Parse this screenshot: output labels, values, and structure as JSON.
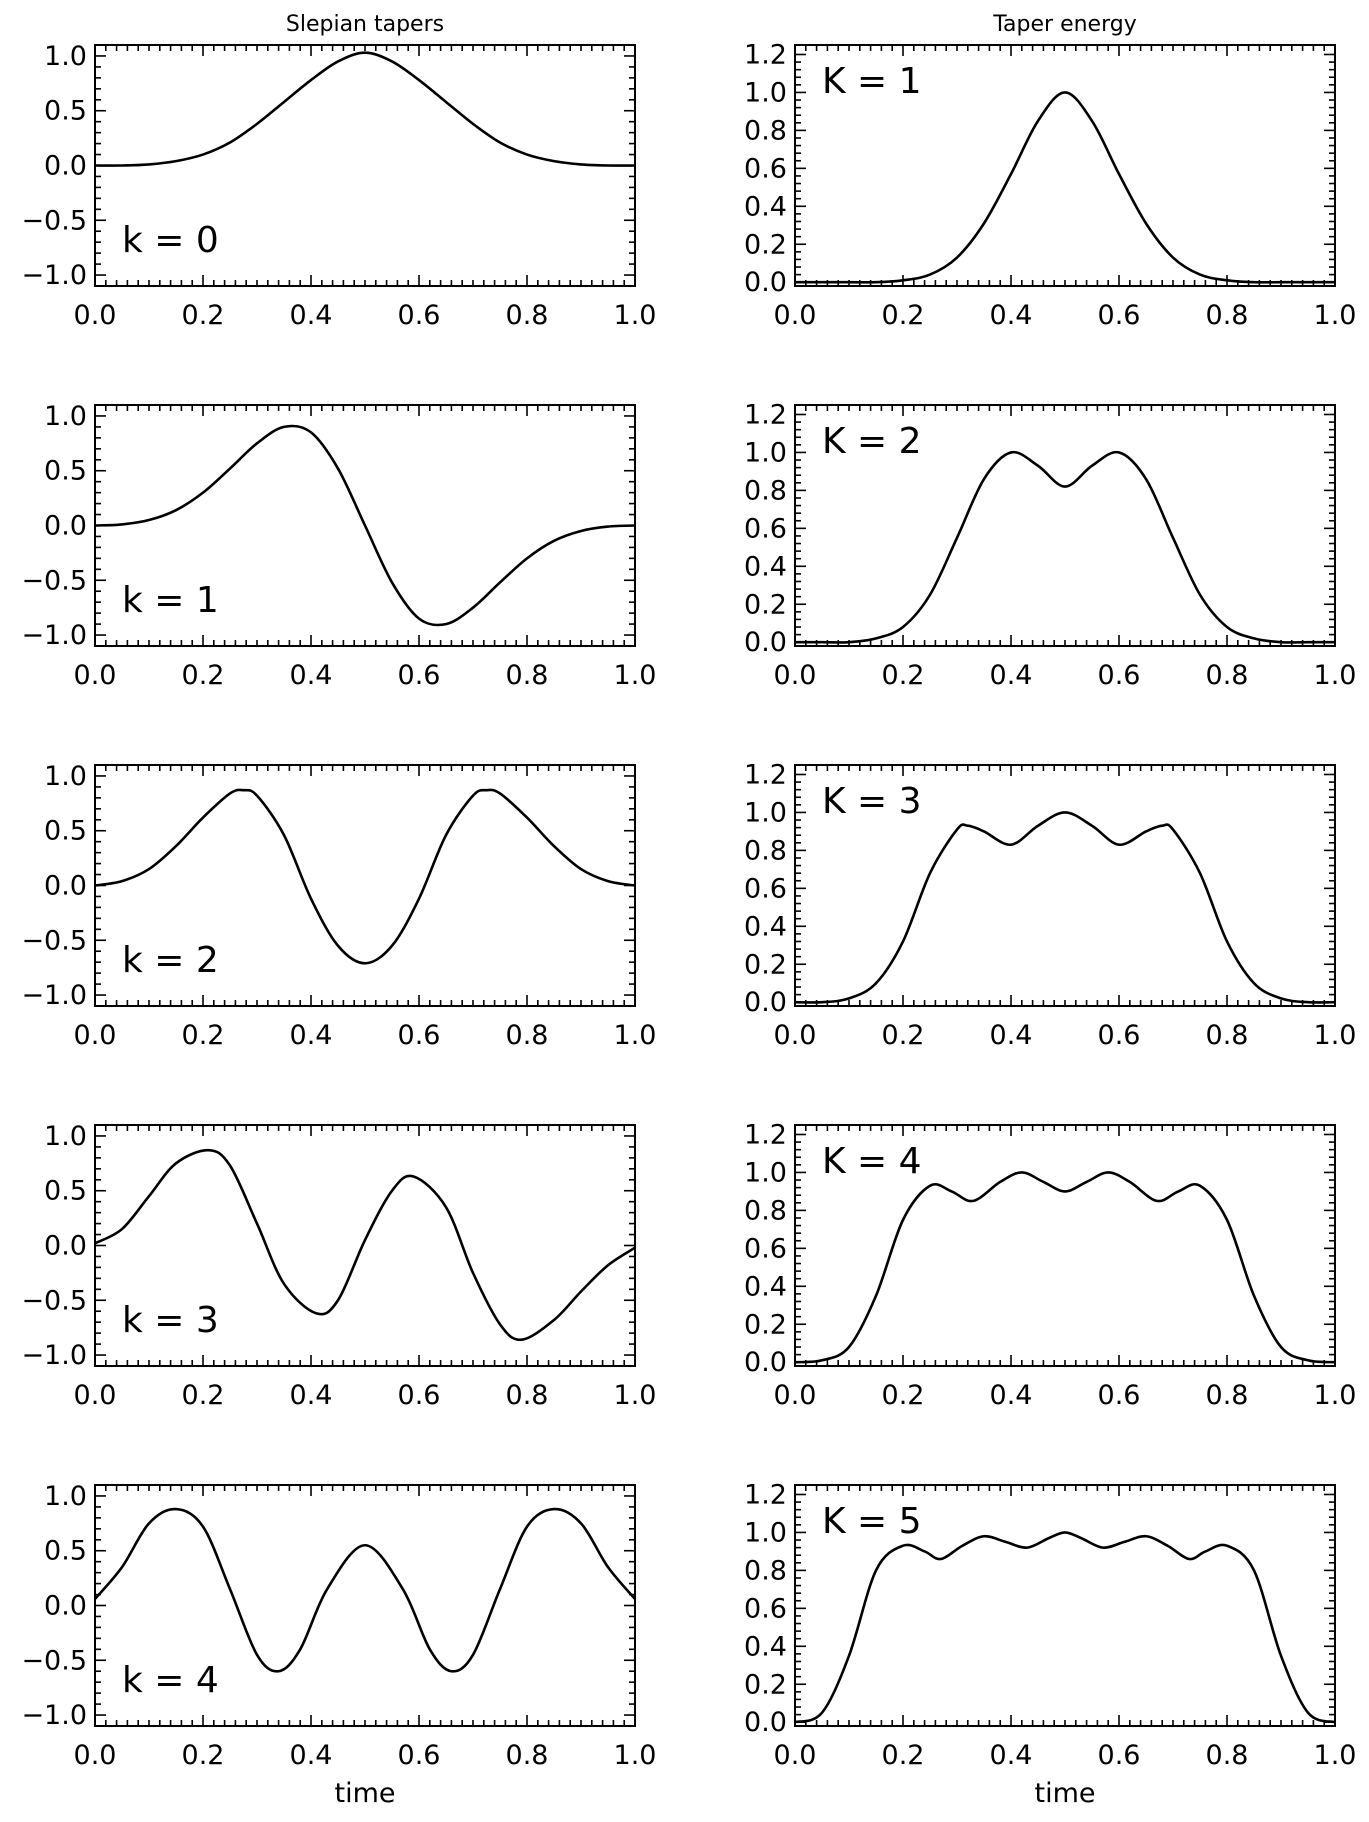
{
  "chart_data": [
    {
      "type": "line",
      "title": "Slepian tapers",
      "xlabel": "",
      "ylabel": "",
      "label": "k = 0",
      "xlim": [
        0,
        1
      ],
      "ylim": [
        -1.1,
        1.1
      ],
      "xticks": [
        "0.0",
        "0.2",
        "0.4",
        "0.6",
        "0.8",
        "1.0"
      ],
      "yticks": [
        "1.0",
        "0.5",
        "0.0",
        "−0.5",
        "−1.0"
      ],
      "ytick_values": [
        1.0,
        0.5,
        0.0,
        -0.5,
        -1.0
      ],
      "x": [
        0,
        0.05,
        0.1,
        0.15,
        0.2,
        0.25,
        0.3,
        0.35,
        0.4,
        0.45,
        0.5,
        0.55,
        0.6,
        0.65,
        0.7,
        0.75,
        0.8,
        0.85,
        0.9,
        0.95,
        1.0
      ],
      "y": [
        0.0,
        0.0,
        0.01,
        0.04,
        0.1,
        0.21,
        0.38,
        0.58,
        0.78,
        0.95,
        1.03,
        0.95,
        0.78,
        0.58,
        0.38,
        0.21,
        0.1,
        0.04,
        0.01,
        0.0,
        0.0
      ]
    },
    {
      "type": "line",
      "title": "Taper energy",
      "xlabel": "",
      "ylabel": "",
      "label": "K = 1",
      "xlim": [
        0,
        1
      ],
      "ylim": [
        -0.02,
        1.25
      ],
      "xticks": [
        "0.0",
        "0.2",
        "0.4",
        "0.6",
        "0.8",
        "1.0"
      ],
      "yticks": [
        "1.2",
        "1.0",
        "0.8",
        "0.6",
        "0.4",
        "0.2",
        "0.0"
      ],
      "ytick_values": [
        1.2,
        1.0,
        0.8,
        0.6,
        0.4,
        0.2,
        0.0
      ],
      "x": [
        0,
        0.05,
        0.1,
        0.15,
        0.2,
        0.25,
        0.3,
        0.35,
        0.4,
        0.45,
        0.5,
        0.55,
        0.6,
        0.65,
        0.7,
        0.75,
        0.8,
        0.85,
        0.9,
        0.95,
        1.0
      ],
      "y": [
        0.0,
        0.0,
        0.0,
        0.0,
        0.01,
        0.04,
        0.13,
        0.31,
        0.57,
        0.85,
        1.0,
        0.85,
        0.57,
        0.31,
        0.13,
        0.04,
        0.01,
        0.0,
        0.0,
        0.0,
        0.0
      ]
    },
    {
      "type": "line",
      "title": "",
      "xlabel": "",
      "ylabel": "",
      "label": "k = 1",
      "xlim": [
        0,
        1
      ],
      "ylim": [
        -1.1,
        1.1
      ],
      "xticks": [
        "0.0",
        "0.2",
        "0.4",
        "0.6",
        "0.8",
        "1.0"
      ],
      "yticks": [
        "1.0",
        "0.5",
        "0.0",
        "−0.5",
        "−1.0"
      ],
      "ytick_values": [
        1.0,
        0.5,
        0.0,
        -0.5,
        -1.0
      ],
      "x": [
        0,
        0.05,
        0.1,
        0.15,
        0.2,
        0.25,
        0.3,
        0.35,
        0.4,
        0.45,
        0.5,
        0.55,
        0.6,
        0.65,
        0.7,
        0.75,
        0.8,
        0.85,
        0.9,
        0.95,
        1.0
      ],
      "y": [
        0.0,
        0.01,
        0.05,
        0.14,
        0.3,
        0.52,
        0.75,
        0.9,
        0.85,
        0.52,
        0.0,
        -0.52,
        -0.85,
        -0.9,
        -0.75,
        -0.52,
        -0.3,
        -0.14,
        -0.05,
        -0.01,
        0.0
      ]
    },
    {
      "type": "line",
      "title": "",
      "xlabel": "",
      "ylabel": "",
      "label": "K = 2",
      "xlim": [
        0,
        1
      ],
      "ylim": [
        -0.02,
        1.25
      ],
      "xticks": [
        "0.0",
        "0.2",
        "0.4",
        "0.6",
        "0.8",
        "1.0"
      ],
      "yticks": [
        "1.2",
        "1.0",
        "0.8",
        "0.6",
        "0.4",
        "0.2",
        "0.0"
      ],
      "ytick_values": [
        1.2,
        1.0,
        0.8,
        0.6,
        0.4,
        0.2,
        0.0
      ],
      "x": [
        0,
        0.05,
        0.1,
        0.15,
        0.2,
        0.25,
        0.3,
        0.35,
        0.4,
        0.45,
        0.5,
        0.55,
        0.6,
        0.65,
        0.7,
        0.75,
        0.8,
        0.85,
        0.9,
        0.95,
        1.0
      ],
      "y": [
        0.0,
        0.0,
        0.0,
        0.02,
        0.08,
        0.25,
        0.55,
        0.86,
        1.0,
        0.93,
        0.82,
        0.93,
        1.0,
        0.86,
        0.55,
        0.25,
        0.08,
        0.02,
        0.0,
        0.0,
        0.0
      ]
    },
    {
      "type": "line",
      "title": "",
      "xlabel": "",
      "ylabel": "",
      "label": "k = 2",
      "xlim": [
        0,
        1
      ],
      "ylim": [
        -1.1,
        1.1
      ],
      "xticks": [
        "0.0",
        "0.2",
        "0.4",
        "0.6",
        "0.8",
        "1.0"
      ],
      "yticks": [
        "1.0",
        "0.5",
        "0.0",
        "−0.5",
        "−1.0"
      ],
      "ytick_values": [
        1.0,
        0.5,
        0.0,
        -0.5,
        -1.0
      ],
      "x": [
        0,
        0.05,
        0.1,
        0.15,
        0.2,
        0.25,
        0.275,
        0.3,
        0.35,
        0.4,
        0.45,
        0.5,
        0.55,
        0.6,
        0.65,
        0.7,
        0.725,
        0.75,
        0.8,
        0.85,
        0.9,
        0.95,
        1.0
      ],
      "y": [
        0.0,
        0.04,
        0.15,
        0.36,
        0.62,
        0.84,
        0.87,
        0.82,
        0.46,
        -0.12,
        -0.55,
        -0.71,
        -0.55,
        -0.12,
        0.46,
        0.82,
        0.87,
        0.84,
        0.62,
        0.36,
        0.15,
        0.04,
        0.0
      ]
    },
    {
      "type": "line",
      "title": "",
      "xlabel": "",
      "ylabel": "",
      "label": "K = 3",
      "xlim": [
        0,
        1
      ],
      "ylim": [
        -0.02,
        1.25
      ],
      "xticks": [
        "0.0",
        "0.2",
        "0.4",
        "0.6",
        "0.8",
        "1.0"
      ],
      "yticks": [
        "1.2",
        "1.0",
        "0.8",
        "0.6",
        "0.4",
        "0.2",
        "0.0"
      ],
      "ytick_values": [
        1.2,
        1.0,
        0.8,
        0.6,
        0.4,
        0.2,
        0.0
      ],
      "x": [
        0,
        0.05,
        0.1,
        0.15,
        0.2,
        0.25,
        0.3,
        0.32,
        0.35,
        0.4,
        0.45,
        0.5,
        0.55,
        0.6,
        0.65,
        0.68,
        0.7,
        0.75,
        0.8,
        0.85,
        0.9,
        0.95,
        1.0
      ],
      "y": [
        0.0,
        0.0,
        0.02,
        0.1,
        0.32,
        0.68,
        0.91,
        0.93,
        0.9,
        0.83,
        0.93,
        1.0,
        0.93,
        0.83,
        0.9,
        0.93,
        0.91,
        0.68,
        0.32,
        0.1,
        0.02,
        0.0,
        0.0
      ]
    },
    {
      "type": "line",
      "title": "",
      "xlabel": "",
      "ylabel": "",
      "label": "k = 3",
      "xlim": [
        0,
        1
      ],
      "ylim": [
        -1.1,
        1.1
      ],
      "xticks": [
        "0.0",
        "0.2",
        "0.4",
        "0.6",
        "0.8",
        "1.0"
      ],
      "yticks": [
        "1.0",
        "0.5",
        "0.0",
        "−0.5",
        "−1.0"
      ],
      "ytick_values": [
        1.0,
        0.5,
        0.0,
        -0.5,
        -1.0
      ],
      "x": [
        0,
        0.05,
        0.1,
        0.15,
        0.21,
        0.25,
        0.3,
        0.35,
        0.41,
        0.45,
        0.5,
        0.55,
        0.59,
        0.65,
        0.7,
        0.75,
        0.79,
        0.85,
        0.9,
        0.95,
        1.0
      ],
      "y": [
        0.02,
        0.15,
        0.45,
        0.75,
        0.87,
        0.73,
        0.2,
        -0.35,
        -0.62,
        -0.5,
        0.05,
        0.5,
        0.63,
        0.35,
        -0.25,
        -0.72,
        -0.86,
        -0.68,
        -0.42,
        -0.18,
        -0.02
      ]
    },
    {
      "type": "line",
      "title": "",
      "xlabel": "",
      "ylabel": "",
      "label": "K = 4",
      "xlim": [
        0,
        1
      ],
      "ylim": [
        -0.02,
        1.25
      ],
      "xticks": [
        "0.0",
        "0.2",
        "0.4",
        "0.6",
        "0.8",
        "1.0"
      ],
      "yticks": [
        "1.2",
        "1.0",
        "0.8",
        "0.6",
        "0.4",
        "0.2",
        "0.0"
      ],
      "ytick_values": [
        1.2,
        1.0,
        0.8,
        0.6,
        0.4,
        0.2,
        0.0
      ],
      "x": [
        0,
        0.05,
        0.1,
        0.15,
        0.2,
        0.25,
        0.29,
        0.33,
        0.38,
        0.42,
        0.46,
        0.5,
        0.54,
        0.58,
        0.62,
        0.67,
        0.71,
        0.75,
        0.8,
        0.85,
        0.9,
        0.95,
        1.0
      ],
      "y": [
        0.0,
        0.01,
        0.08,
        0.35,
        0.75,
        0.93,
        0.9,
        0.85,
        0.95,
        1.0,
        0.95,
        0.9,
        0.95,
        1.0,
        0.95,
        0.85,
        0.9,
        0.93,
        0.75,
        0.35,
        0.08,
        0.01,
        0.0
      ]
    },
    {
      "type": "line",
      "title": "",
      "xlabel": "time",
      "ylabel": "",
      "label": "k = 4",
      "xlim": [
        0,
        1
      ],
      "ylim": [
        -1.1,
        1.1
      ],
      "xticks": [
        "0.0",
        "0.2",
        "0.4",
        "0.6",
        "0.8",
        "1.0"
      ],
      "yticks": [
        "1.0",
        "0.5",
        "0.0",
        "−0.5",
        "−1.0"
      ],
      "ytick_values": [
        1.0,
        0.5,
        0.0,
        -0.5,
        -1.0
      ],
      "x": [
        0,
        0.05,
        0.1,
        0.15,
        0.2,
        0.25,
        0.3,
        0.34,
        0.38,
        0.43,
        0.5,
        0.57,
        0.62,
        0.66,
        0.7,
        0.75,
        0.8,
        0.85,
        0.9,
        0.95,
        1.0
      ],
      "y": [
        0.06,
        0.35,
        0.75,
        0.88,
        0.72,
        0.15,
        -0.45,
        -0.6,
        -0.4,
        0.15,
        0.55,
        0.15,
        -0.4,
        -0.6,
        -0.45,
        0.15,
        0.72,
        0.88,
        0.75,
        0.35,
        0.06
      ]
    },
    {
      "type": "line",
      "title": "",
      "xlabel": "time",
      "ylabel": "",
      "label": "K = 5",
      "xlim": [
        0,
        1
      ],
      "ylim": [
        -0.02,
        1.25
      ],
      "xticks": [
        "0.0",
        "0.2",
        "0.4",
        "0.6",
        "0.8",
        "1.0"
      ],
      "yticks": [
        "1.2",
        "1.0",
        "0.8",
        "0.6",
        "0.4",
        "0.2",
        "0.0"
      ],
      "ytick_values": [
        1.2,
        1.0,
        0.8,
        0.6,
        0.4,
        0.2,
        0.0
      ],
      "x": [
        0,
        0.05,
        0.1,
        0.15,
        0.2,
        0.24,
        0.27,
        0.31,
        0.35,
        0.39,
        0.43,
        0.47,
        0.5,
        0.53,
        0.57,
        0.61,
        0.65,
        0.69,
        0.73,
        0.76,
        0.8,
        0.85,
        0.9,
        0.95,
        1.0
      ],
      "y": [
        0.0,
        0.05,
        0.35,
        0.8,
        0.93,
        0.9,
        0.86,
        0.93,
        0.98,
        0.95,
        0.92,
        0.97,
        1.0,
        0.97,
        0.92,
        0.95,
        0.98,
        0.93,
        0.86,
        0.9,
        0.93,
        0.8,
        0.35,
        0.05,
        0.0
      ]
    }
  ]
}
